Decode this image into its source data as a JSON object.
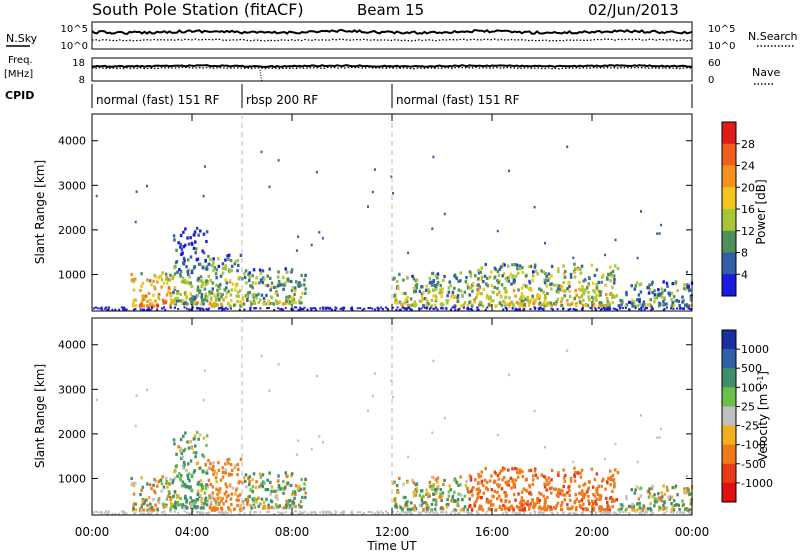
{
  "header": {
    "station": "South Pole Station (fitACF)",
    "beam": "Beam 15",
    "date": "02/Jun/2013"
  },
  "noise_panel": {
    "left_label": "N.Sky",
    "right_label": "N.Search",
    "left_ticks": [
      "10^5",
      "10^0"
    ],
    "right_ticks": [
      "10^5",
      "10^0"
    ]
  },
  "freq_panel": {
    "left_label_line1": "Freq.",
    "left_label_line2": "[MHz]",
    "left_ticks": [
      "18",
      "8"
    ],
    "right_label": "Nave",
    "right_ticks": [
      "60",
      "0"
    ]
  },
  "cpid": {
    "label": "CPID",
    "modes": [
      {
        "name": "normal (fast) 151 RF",
        "start_hour": 0,
        "end_hour": 6
      },
      {
        "name": "rbsp 200 RF",
        "start_hour": 6,
        "end_hour": 12
      },
      {
        "name": "normal (fast) 151 RF",
        "start_hour": 12,
        "end_hour": 24
      }
    ]
  },
  "power_panel": {
    "ylabel": "Slant Range [km]",
    "yticks": [
      "4000",
      "3000",
      "2000",
      "1000"
    ],
    "colorbar_label": "Power [dB]",
    "colorbar_ticks": [
      "28",
      "24",
      "20",
      "16",
      "12",
      "8",
      "4"
    ]
  },
  "velocity_panel": {
    "ylabel": "Slant Range [km]",
    "yticks": [
      "4000",
      "3000",
      "2000",
      "1000"
    ],
    "colorbar_label": "Velocity [m s",
    "colorbar_label_sup": "-1",
    "colorbar_label_end": "]",
    "colorbar_ticks": [
      "1000",
      "500",
      "100",
      "25",
      "-25",
      "-100",
      "-500",
      "-1000"
    ]
  },
  "xaxis": {
    "label": "Time UT",
    "ticks": [
      "00:00",
      "04:00",
      "08:00",
      "12:00",
      "16:00",
      "20:00",
      "00:00"
    ]
  },
  "colors": {
    "power_scale": [
      "#e21a1c",
      "#f0601c",
      "#f4921d",
      "#f2c41d",
      "#a4c637",
      "#4e8f5a",
      "#2e5fa8",
      "#1a1ae0"
    ],
    "velocity_scale": [
      "#1c2fa0",
      "#2d62a6",
      "#3f8f6a",
      "#6cc04a",
      "#c0c0c0",
      "#f0b020",
      "#f07a1a",
      "#e83a18",
      "#e01010"
    ]
  },
  "chart_data": {
    "type": "heatmap",
    "title": "South Pole Station (fitACF) Beam 15",
    "x": {
      "label": "Time UT",
      "range_hours": [
        0,
        24
      ]
    },
    "y": {
      "label": "Slant Range [km]",
      "range": [
        180,
        4600
      ]
    },
    "panels": [
      {
        "name": "Power [dB]",
        "color_range": [
          0,
          32
        ]
      },
      {
        "name": "Velocity [m s-1]",
        "color_range": [
          -1000,
          1000
        ]
      }
    ],
    "echo_regions": [
      {
        "t0": 1.5,
        "t1": 3.2,
        "r0": 250,
        "r1": 1000,
        "power": 22,
        "velocity": -80
      },
      {
        "t0": 3.2,
        "t1": 4.6,
        "r0": 300,
        "r1": 2000,
        "power": 14,
        "velocity": 120
      },
      {
        "t0": 4.6,
        "t1": 6.0,
        "r0": 250,
        "r1": 1400,
        "power": 16,
        "velocity": -200
      },
      {
        "t0": 6.0,
        "t1": 8.5,
        "r0": 300,
        "r1": 1100,
        "power": 14,
        "velocity": 60
      },
      {
        "t0": 12.0,
        "t1": 15.0,
        "r0": 250,
        "r1": 1000,
        "power": 14,
        "velocity": 40
      },
      {
        "t0": 15.0,
        "t1": 21.0,
        "r0": 250,
        "r1": 1200,
        "power": 17,
        "velocity": -350
      },
      {
        "t0": 21.0,
        "t1": 24.0,
        "r0": 250,
        "r1": 800,
        "power": 11,
        "velocity": 80
      }
    ]
  }
}
